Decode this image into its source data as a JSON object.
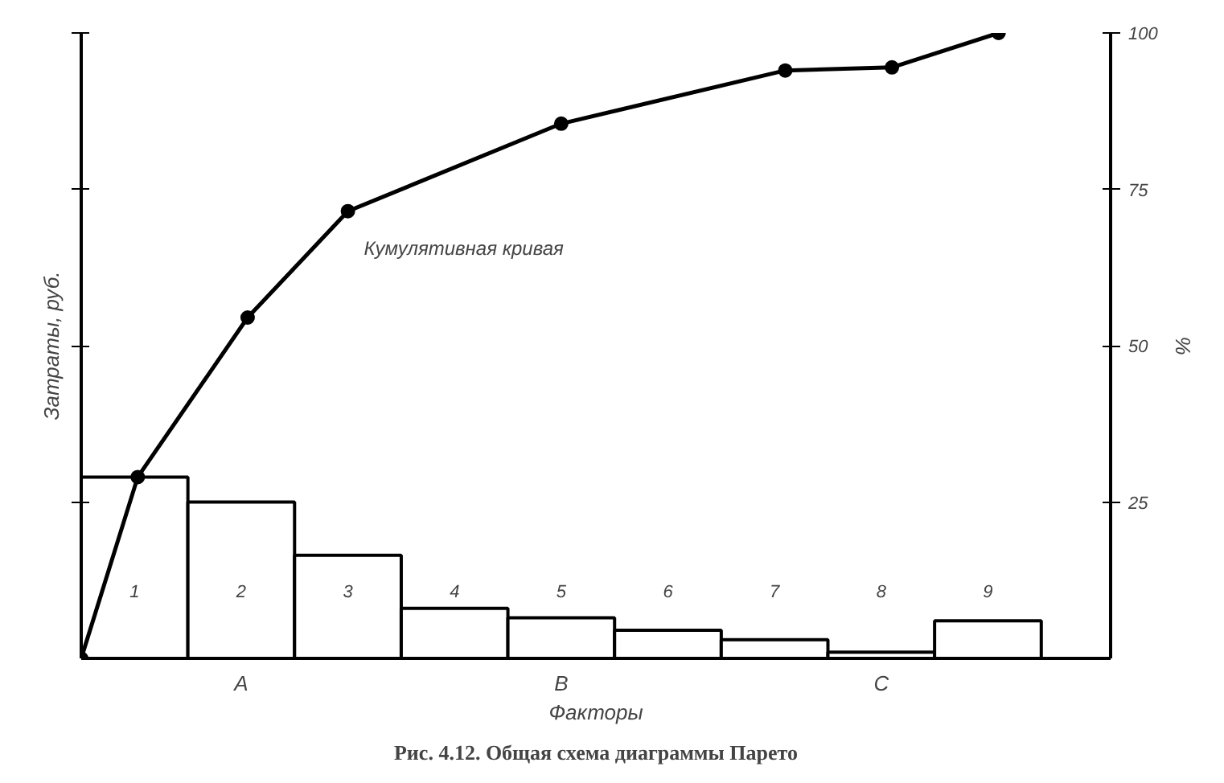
{
  "chart_data": {
    "type": "bar",
    "title": "Рис. 4.12. Общая схема диаграммы Парето",
    "xlabel": "Факторы",
    "ylabel": "Затраты, руб.",
    "y2label": "%",
    "x": [
      0.5,
      1.5,
      2.5,
      3.5,
      4.5,
      5.5,
      6.5,
      7.5,
      8.5
    ],
    "xlim": [
      0,
      9.65
    ],
    "xticks": [
      {
        "value": 0.5,
        "label": "1"
      },
      {
        "value": 1.5,
        "label": "2"
      },
      {
        "value": 2.5,
        "label": "3"
      },
      {
        "value": 3.5,
        "label": "4"
      },
      {
        "value": 4.5,
        "label": "5"
      },
      {
        "value": 5.5,
        "label": "6"
      },
      {
        "value": 6.5,
        "label": "7"
      },
      {
        "value": 7.5,
        "label": "8"
      },
      {
        "value": 8.5,
        "label": "9"
      }
    ],
    "y2lim": [
      0,
      100
    ],
    "y2ticks": [
      25,
      50,
      75,
      100
    ],
    "series": [
      {
        "axis": "y2",
        "color": "#ffffff",
        "values": [
          29,
          25,
          16.5,
          8,
          6.5,
          4.5,
          3,
          1,
          6
        ]
      },
      {
        "type": "line",
        "axis": "y2",
        "name": "Кумулятивная кривая",
        "color": "#000000",
        "marker": "circle",
        "x": [
          0,
          0.53,
          1.56,
          2.5,
          4.5,
          6.6,
          7.6,
          8.6
        ],
        "values": [
          0,
          29,
          54.5,
          71.5,
          85.5,
          94,
          94.5,
          100
        ]
      }
    ],
    "annotations": [
      "A",
      "B",
      "C"
    ],
    "grid": false
  }
}
